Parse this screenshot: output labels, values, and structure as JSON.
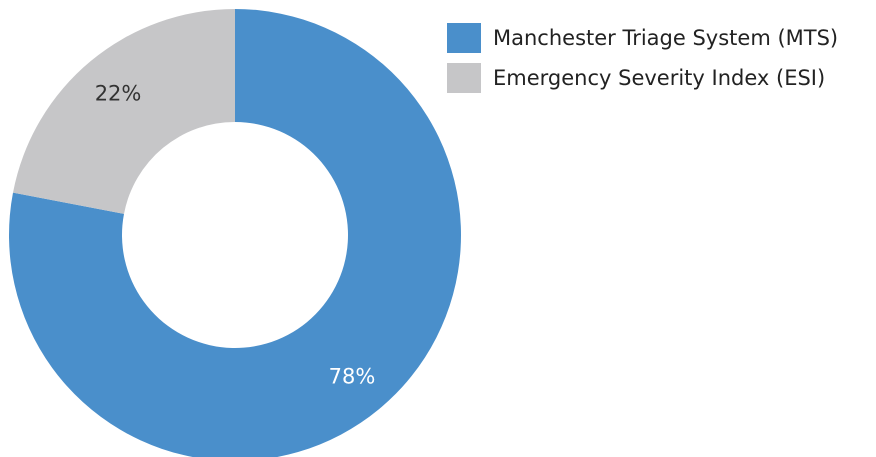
{
  "chart_data": {
    "type": "pie",
    "variant": "donut",
    "title": "",
    "categories": [
      "Manchester Triage System (MTS)",
      "Emergency Severity Index (ESI)"
    ],
    "values": [
      78,
      22
    ],
    "data_labels": [
      "78%",
      "22%"
    ],
    "colors": [
      "#4a8fcb",
      "#c6c6c8"
    ],
    "label_colors": [
      "#ffffff",
      "#333333"
    ],
    "legend": "top-right"
  }
}
